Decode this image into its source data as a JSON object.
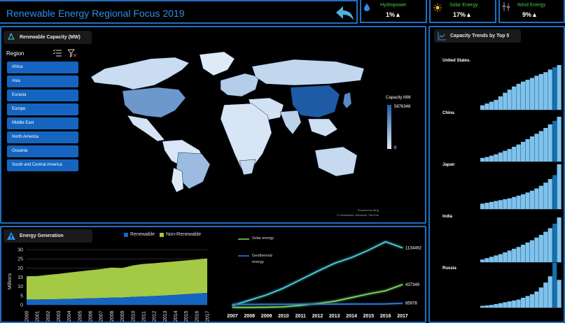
{
  "header": {
    "title": "Renewable Energy Regional Focus 2019"
  },
  "kpis": [
    {
      "label": "Hydropower",
      "value": "1%▲",
      "icon": "water-drop-icon",
      "color": "#2e8fe6"
    },
    {
      "label": "Solar Energy",
      "value": "17%▲",
      "icon": "sun-icon",
      "color": "#f2c028"
    },
    {
      "label": "Wind Energy",
      "value": "9%▲",
      "icon": "wind-turbine-icon",
      "color": "#b0b0b0"
    }
  ],
  "capacity_panel": {
    "title": "Renewable Capacity (MW)",
    "region_title": "Region",
    "regions": [
      "Africa",
      "Asia",
      "Eurasia",
      "Europe",
      "Middle East",
      "North America",
      "Oceania",
      "South and Central America"
    ],
    "legend_title": "Capacity MW",
    "legend_max": "5876348",
    "legend_min": "0",
    "credit_1": "Powered by Bing",
    "credit_2": "© GeoNames, Microsoft, TomTom"
  },
  "trends_panel": {
    "title": "Capacity Trends by Top 5",
    "countries": [
      "United States.",
      "China",
      "Japan",
      "India",
      "Russia"
    ]
  },
  "energy_panel": {
    "title": "Energy Generation",
    "legend_renewable": "Renewable",
    "legend_nonrenewable": "Non-Renewable",
    "ylabel": "Millions"
  },
  "colors": {
    "accent": "#1f6fc5",
    "renewable": "#1565c0",
    "nonrenewable": "#a4c944",
    "solar_line": "#7fe36a",
    "geo_line": "#2e7fe6",
    "trend_bar": "#7ec3ee"
  },
  "chart_data": [
    {
      "type": "area",
      "title": "Energy Generation",
      "ylabel": "Millions",
      "ylim": [
        0,
        30
      ],
      "yticks": [
        0,
        5,
        10,
        15,
        20,
        25,
        30
      ],
      "x": [
        "2000",
        "2001",
        "2002",
        "2003",
        "2004",
        "2005",
        "2006",
        "2007",
        "2008",
        "2009",
        "2010",
        "2011",
        "2012",
        "2013",
        "2014",
        "2015",
        "2016",
        "2017"
      ],
      "series": [
        {
          "name": "Renewable",
          "values": [
            2.9,
            2.9,
            3.0,
            3.1,
            3.2,
            3.4,
            3.5,
            3.7,
            3.9,
            4.0,
            4.3,
            4.5,
            4.8,
            5.1,
            5.4,
            5.8,
            6.1,
            6.5
          ]
        },
        {
          "name": "Non-Renewable",
          "values": [
            15.5,
            15.6,
            16.3,
            16.8,
            17.5,
            18.2,
            18.8,
            19.4,
            20.2,
            20.0,
            21.4,
            22.2,
            22.6,
            23.1,
            23.6,
            24.1,
            24.6,
            25.2
          ]
        }
      ]
    },
    {
      "type": "line",
      "x": [
        "2007",
        "2008",
        "2009",
        "2010",
        "2011",
        "2012",
        "2013",
        "2014",
        "2015",
        "2016",
        "2017"
      ],
      "series": [
        {
          "name": "Solar energy",
          "values": [
            40000,
            140000,
            240000,
            370000,
            530000,
            690000,
            840000,
            950000,
            1090000,
            1250000,
            1134492
          ],
          "end_label": "1134492"
        },
        {
          "name": "Geothermal energy",
          "values": [
            5000,
            4000,
            8000,
            15000,
            42000,
            78000,
            120000,
            190000,
            260000,
            320000,
            437349
          ],
          "end_label": "437349"
        },
        {
          "name": "",
          "values": [
            60000,
            61000,
            62000,
            63000,
            64000,
            65000,
            66000,
            67000,
            68000,
            69000,
            85978
          ],
          "end_label": "85978"
        }
      ]
    },
    {
      "type": "bar",
      "title": "Capacity Trends by Top 5",
      "series": [
        {
          "name": "United States.",
          "values": [
            10,
            14,
            18,
            22,
            30,
            38,
            45,
            52,
            58,
            63,
            67,
            71,
            76,
            80,
            84,
            90,
            95,
            100
          ]
        },
        {
          "name": "China",
          "values": [
            8,
            10,
            13,
            16,
            20,
            24,
            28,
            33,
            38,
            44,
            50,
            56,
            62,
            68,
            75,
            83,
            91,
            100
          ]
        },
        {
          "name": "Japan",
          "values": [
            12,
            14,
            16,
            18,
            20,
            22,
            24,
            27,
            30,
            33,
            37,
            41,
            46,
            52,
            59,
            67,
            76,
            100
          ]
        },
        {
          "name": "India",
          "values": [
            6,
            9,
            12,
            15,
            18,
            22,
            26,
            30,
            34,
            39,
            44,
            49,
            55,
            61,
            68,
            76,
            86,
            100
          ]
        },
        {
          "name": "Russia",
          "values": [
            4,
            5,
            6,
            8,
            10,
            12,
            14,
            16,
            18,
            22,
            26,
            30,
            36,
            45,
            56,
            70,
            100,
            62
          ]
        }
      ]
    }
  ]
}
